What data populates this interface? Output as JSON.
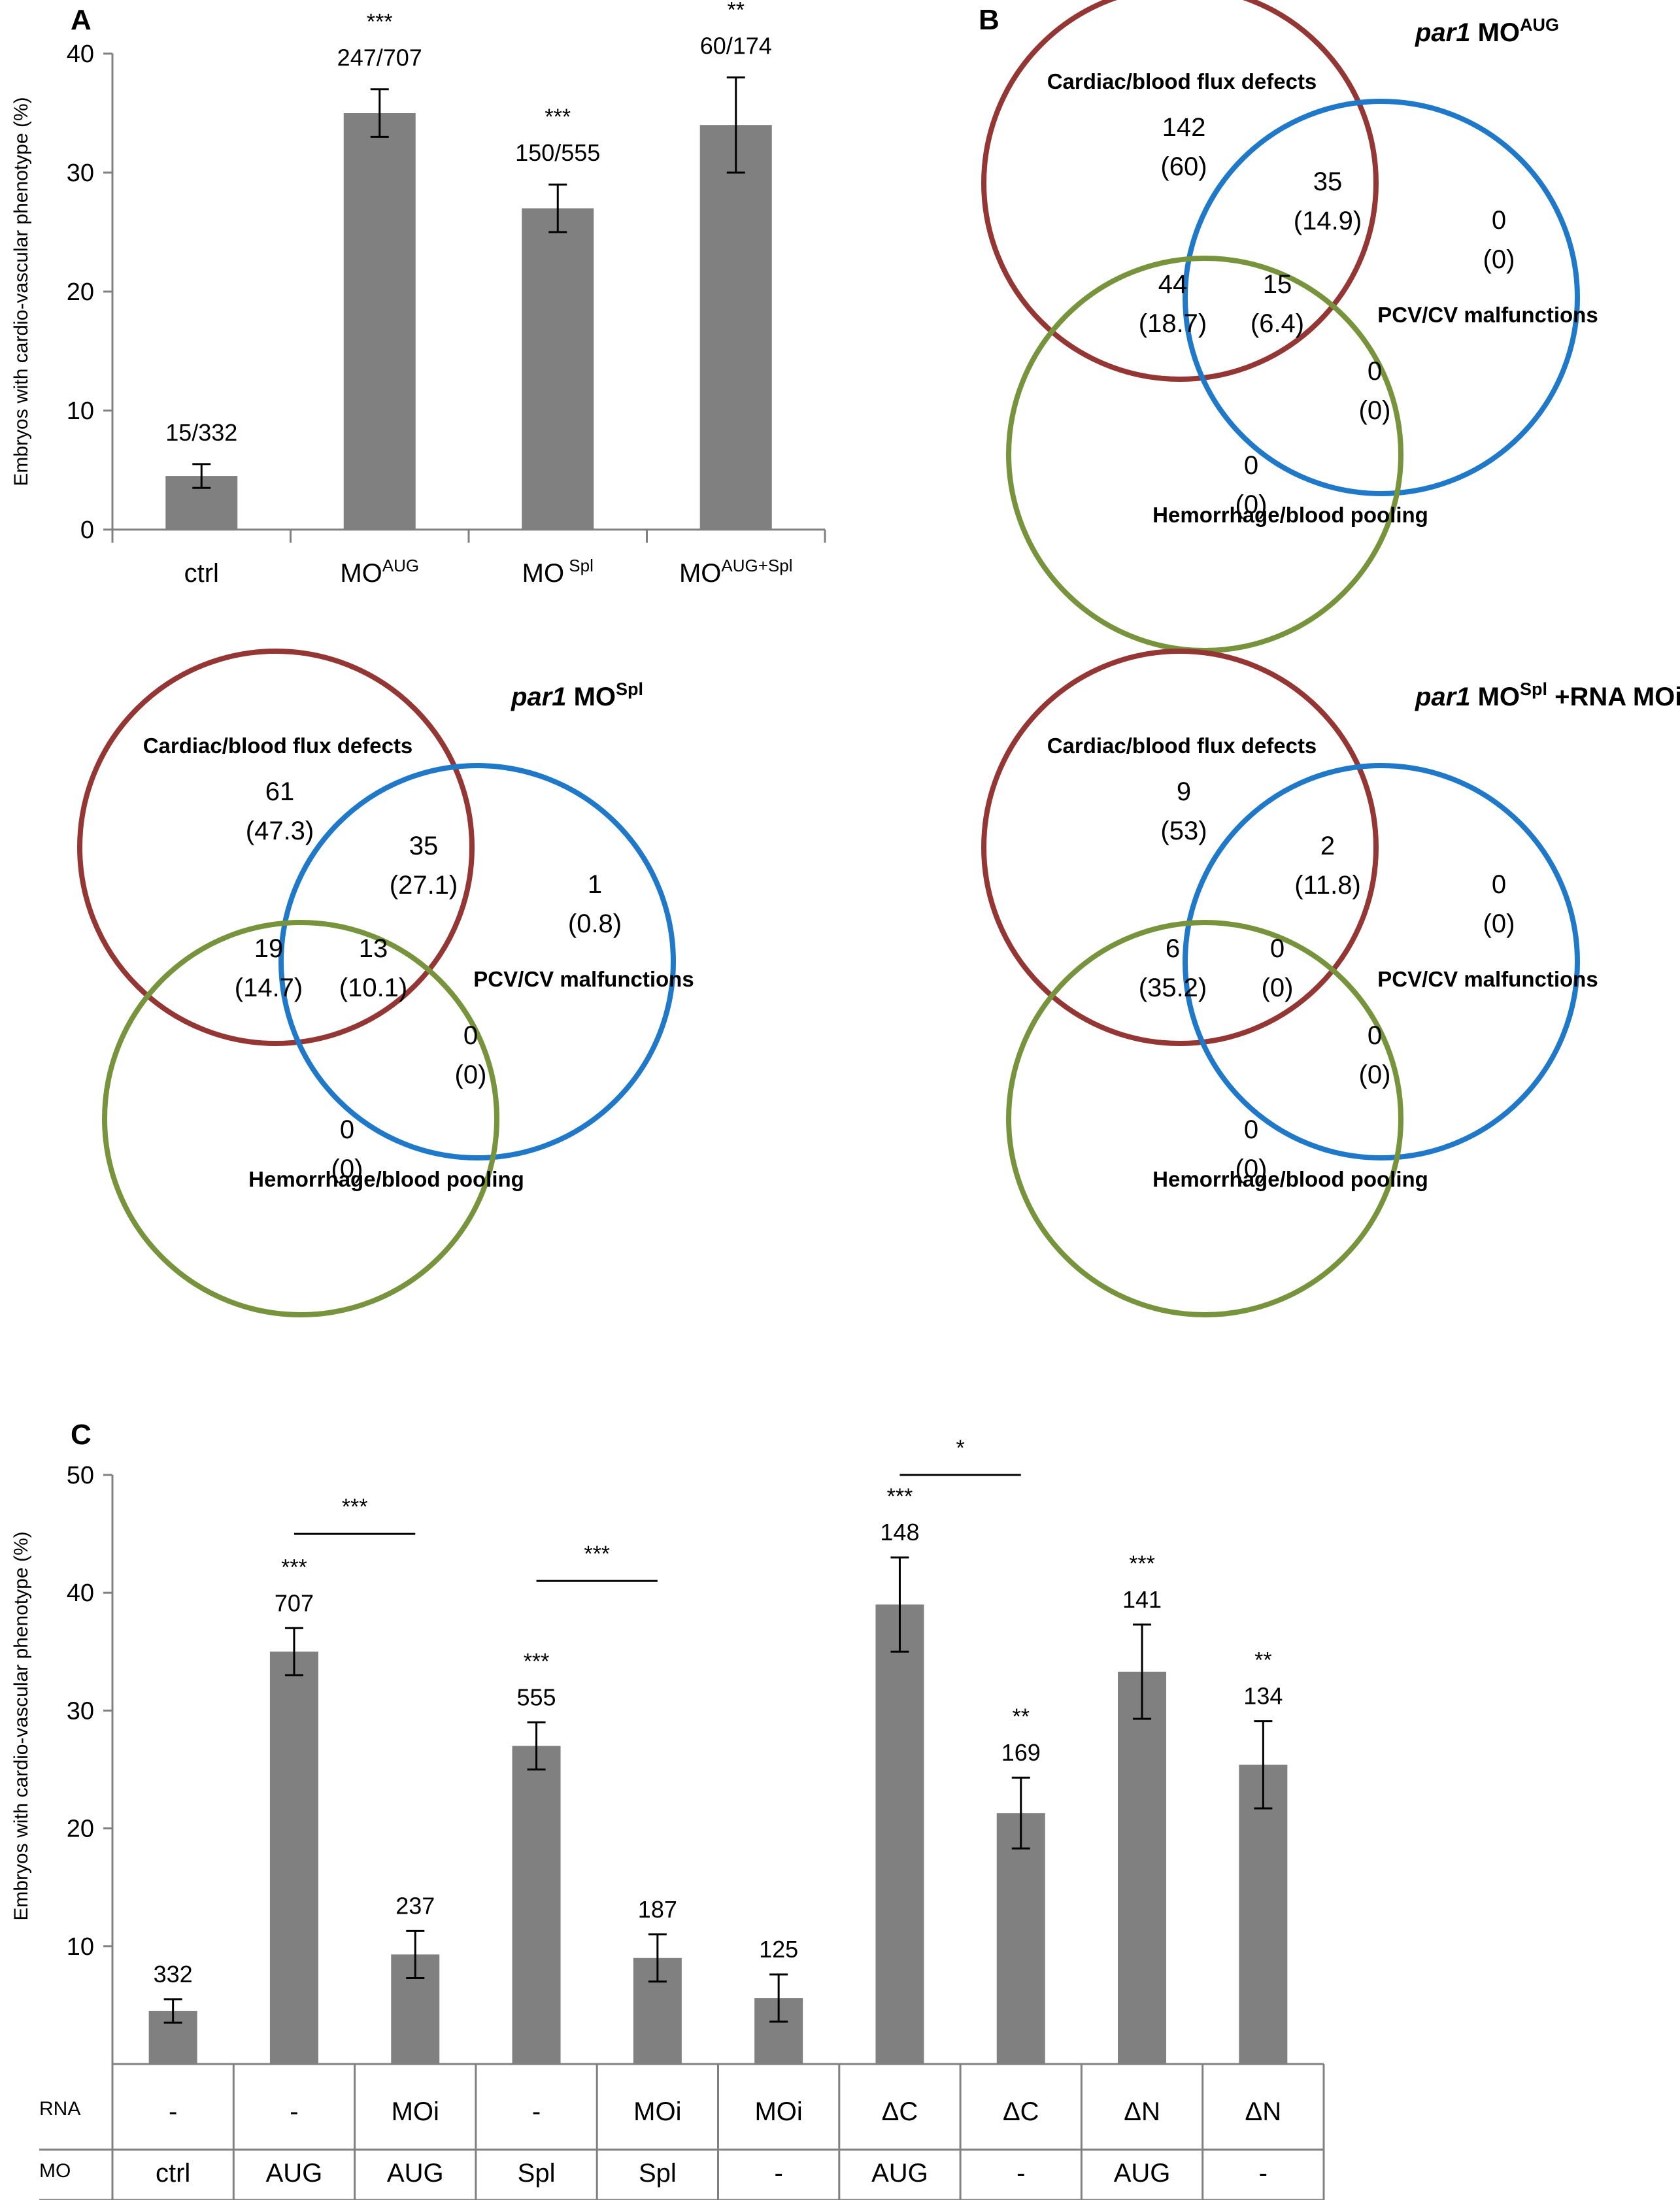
{
  "panels": {
    "a": "A",
    "b": "B",
    "c": "C"
  },
  "colors": {
    "bar": "#808080",
    "axis": "#808080",
    "cardiac_circle": "#943634",
    "pcv_circle": "#1f78c8",
    "hemorrhage_circle": "#77933c"
  },
  "chart_data": [
    {
      "type": "bar",
      "title": "",
      "ylabel": "Embryos with cardio-vascular phenotype (%)",
      "ylim": [
        0,
        40
      ],
      "yticks": [
        "0",
        "10",
        "20",
        "30",
        "40"
      ],
      "categories": [
        {
          "main": "ctrl",
          "sup": ""
        },
        {
          "main": "MO",
          "sup": "AUG"
        },
        {
          "main": "MO",
          "sup": " Spl"
        },
        {
          "main": "MO",
          "sup": "AUG+Spl"
        }
      ],
      "values": [
        4.5,
        35,
        27,
        34
      ],
      "errors": [
        1,
        2,
        2,
        4
      ],
      "counts": [
        "15/332",
        "247/707",
        "150/555",
        "60/174"
      ],
      "significance": [
        "",
        "***",
        "***",
        "**"
      ]
    },
    {
      "type": "venn",
      "title_italic": "par1",
      "title_main": " MO",
      "title_sup": "AUG",
      "title_tail": "",
      "sets": [
        "Cardiac/blood flux defects",
        "PCV/CV malfunctions",
        "Hemorrhage/blood pooling"
      ],
      "regions": {
        "cardiac_only": [
          "142",
          "(60)"
        ],
        "cardiac_pcv": [
          "35",
          "(14.9)"
        ],
        "pcv_only": [
          "0",
          "(0)"
        ],
        "cardiac_hem": [
          "44",
          "(18.7)"
        ],
        "all_three": [
          "15",
          "(6.4)"
        ],
        "pcv_hem": [
          "0",
          "(0)"
        ],
        "hem_only": [
          "0",
          "(0)"
        ]
      }
    },
    {
      "type": "venn",
      "title_italic": "par1",
      "title_main": " MO",
      "title_sup": "Spl",
      "title_tail": "",
      "sets": [
        "Cardiac/blood flux defects",
        "PCV/CV malfunctions",
        "Hemorrhage/blood pooling"
      ],
      "regions": {
        "cardiac_only": [
          "61",
          "(47.3)"
        ],
        "cardiac_pcv": [
          "35",
          "(27.1)"
        ],
        "pcv_only": [
          "1",
          "(0.8)"
        ],
        "cardiac_hem": [
          "19",
          "(14.7)"
        ],
        "all_three": [
          "13",
          "(10.1)"
        ],
        "pcv_hem": [
          "0",
          "(0)"
        ],
        "hem_only": [
          "0",
          "(0)"
        ]
      }
    },
    {
      "type": "venn",
      "title_italic": "par1",
      "title_main": " MO",
      "title_sup": "Spl",
      "title_tail": " +RNA MOi",
      "sets": [
        "Cardiac/blood flux defects",
        "PCV/CV malfunctions",
        "Hemorrhage/blood pooling"
      ],
      "regions": {
        "cardiac_only": [
          "9",
          "(53)"
        ],
        "cardiac_pcv": [
          "2",
          "(11.8)"
        ],
        "pcv_only": [
          "0",
          "(0)"
        ],
        "cardiac_hem": [
          "6",
          "(35.2)"
        ],
        "all_three": [
          "0",
          "(0)"
        ],
        "pcv_hem": [
          "0",
          "(0)"
        ],
        "hem_only": [
          "0",
          "(0)"
        ]
      }
    },
    {
      "type": "bar",
      "title": "",
      "ylabel": "Embryos with cardio-vascular phenotype (%)",
      "ylim": [
        0,
        50
      ],
      "yticks": [
        "10",
        "20",
        "30",
        "40",
        "50"
      ],
      "row_labels": [
        "RNA",
        "MO"
      ],
      "rna": [
        "-",
        "-",
        "MOi",
        "-",
        "MOi",
        "MOi",
        "ΔC",
        "ΔC",
        "ΔN",
        "ΔN"
      ],
      "mo": [
        "ctrl",
        "AUG",
        "AUG",
        "Spl",
        "Spl",
        "-",
        "AUG",
        "-",
        "AUG",
        "-"
      ],
      "values": [
        4.5,
        35,
        9.3,
        27,
        9,
        5.6,
        39,
        21.3,
        33.3,
        25.4
      ],
      "errors": [
        1,
        2,
        2,
        2,
        2,
        2,
        4,
        3,
        4,
        3.7
      ],
      "counts": [
        "332",
        "707",
        "237",
        "555",
        "187",
        "125",
        "148",
        "169",
        "141",
        "134"
      ],
      "significance": [
        "",
        "***",
        "",
        "***",
        "",
        "",
        "***",
        "**",
        "***",
        "**"
      ],
      "brackets": [
        {
          "from": 1,
          "to": 2,
          "y": 45,
          "label": "***"
        },
        {
          "from": 3,
          "to": 4,
          "y": 41,
          "label": "***"
        },
        {
          "from": 6,
          "to": 7,
          "y": 50,
          "label": "*"
        }
      ]
    }
  ]
}
